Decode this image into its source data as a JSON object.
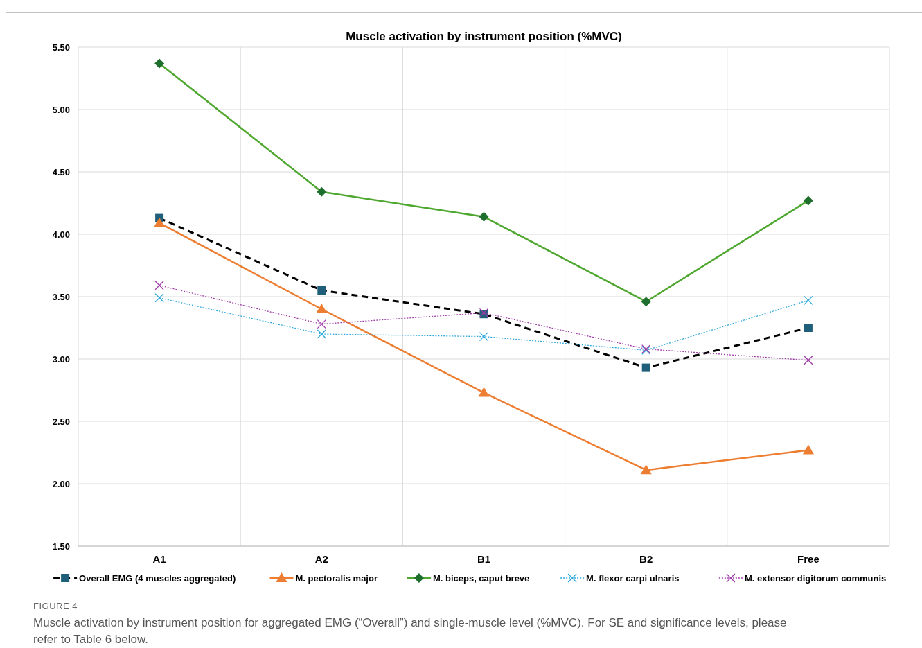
{
  "chart_data": {
    "type": "line",
    "title": "Muscle activation by instrument position (%MVC)",
    "categories": [
      "A1",
      "A2",
      "B1",
      "B2",
      "Free"
    ],
    "ylim": [
      1.5,
      5.5
    ],
    "yticks": [
      {
        "value": 1.5,
        "label": "1.50"
      },
      {
        "value": 2,
        "label": "2.00"
      },
      {
        "value": 2.5,
        "label": "2.50"
      },
      {
        "value": 3,
        "label": "3.00"
      },
      {
        "value": 3.5,
        "label": "3.50"
      },
      {
        "value": 4,
        "label": "4.00"
      },
      {
        "value": 4.5,
        "label": "4.50"
      },
      {
        "value": 5,
        "label": "5.00"
      },
      {
        "value": 5.5,
        "label": "5.50"
      }
    ],
    "grid": true,
    "legend": "bottom",
    "series": [
      {
        "name": "Overall EMG (4 muscles aggregated)",
        "color": "#000000",
        "marker": "square",
        "line_style": "dashed",
        "values": [
          4.13,
          3.55,
          3.36,
          2.93,
          3.25
        ]
      },
      {
        "name": "M. pectoralis major",
        "color": "#ed7d31",
        "marker": "triangle",
        "line_style": "solid",
        "values": [
          4.09,
          3.4,
          2.73,
          2.11,
          2.27
        ]
      },
      {
        "name": "M. biceps, caput breve",
        "color": "#4ea72e",
        "marker": "diamond",
        "line_style": "solid",
        "values": [
          5.37,
          4.34,
          4.14,
          3.46,
          4.27
        ]
      },
      {
        "name": "M. flexor carpi ulnaris",
        "color": "#2ea8dc",
        "marker": "cross",
        "line_style": "dotted",
        "values": [
          3.49,
          3.2,
          3.18,
          3.07,
          3.47
        ]
      },
      {
        "name": "M. extensor digitorum communis",
        "color": "#a03ca8",
        "marker": "cross",
        "line_style": "dotted",
        "values": [
          3.59,
          3.28,
          3.37,
          3.08,
          2.99
        ]
      }
    ],
    "annotations": [
      "FIGURE 4",
      "Muscle activation by instrument position for aggregated EMG (“Overall”) and single-muscle level (%MVC). For SE and significance levels, please refer to Table 6 below."
    ]
  }
}
